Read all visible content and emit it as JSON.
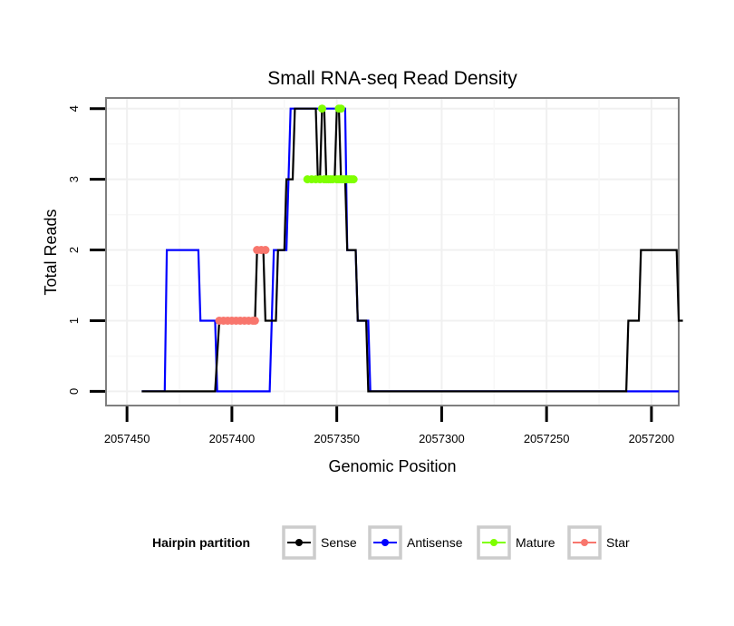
{
  "chart_data": {
    "type": "line",
    "title": "Small RNA-seq Read Density",
    "xlabel": "Genomic Position",
    "ylabel": "Total Reads",
    "x_reversed": true,
    "xlim": [
      2057460,
      2057187
    ],
    "ylim": [
      -0.2,
      4.15
    ],
    "x_ticks": [
      2057450,
      2057400,
      2057350,
      2057300,
      2057250,
      2057200
    ],
    "x_tick_labels": [
      "2057450",
      "2057400",
      "2057350",
      "2057300",
      "2057250",
      "2057200"
    ],
    "y_ticks": [
      0,
      1,
      2,
      3,
      4
    ],
    "y_tick_labels": [
      "0",
      "1",
      "2",
      "3",
      "4"
    ],
    "grid": true,
    "legend": {
      "title": "Hairpin partition",
      "position": "bottom",
      "entries": [
        "Sense",
        "Antisense",
        "Mature",
        "Star"
      ]
    },
    "series": [
      {
        "name": "Sense",
        "color": "#000000",
        "style": "line",
        "x": [
          2057443,
          2057408,
          2057406,
          2057389,
          2057388,
          2057385,
          2057384,
          2057379,
          2057378,
          2057375,
          2057374,
          2057371,
          2057370,
          2057360,
          2057359,
          2057358,
          2057357,
          2057356,
          2057355,
          2057351,
          2057350,
          2057349,
          2057348,
          2057346,
          2057345,
          2057341,
          2057340,
          2057336,
          2057335,
          2057331,
          2057330,
          2057212,
          2057211,
          2057206,
          2057205,
          2057188,
          2057187,
          2057185
        ],
        "y": [
          0,
          0,
          1,
          1,
          2,
          2,
          1,
          1,
          2,
          2,
          3,
          3,
          4,
          4,
          3,
          3,
          4,
          4,
          3,
          3,
          4,
          4,
          3,
          3,
          2,
          2,
          1,
          1,
          0,
          0,
          0,
          0,
          1,
          1,
          2,
          2,
          1,
          1
        ]
      },
      {
        "name": "Antisense",
        "color": "#0000ff",
        "style": "line",
        "x": [
          2057443,
          2057432,
          2057431,
          2057416,
          2057415,
          2057408,
          2057407,
          2057400,
          2057399,
          2057382,
          2057380,
          2057374,
          2057372,
          2057346,
          2057345,
          2057341,
          2057340,
          2057335,
          2057334,
          2057187
        ],
        "y": [
          0,
          0,
          2,
          2,
          1,
          1,
          0,
          0,
          0,
          0,
          2,
          2,
          4,
          4,
          2,
          2,
          1,
          1,
          0,
          0
        ]
      },
      {
        "name": "Mature",
        "color": "#7fff00",
        "style": "points",
        "x": [
          2057364,
          2057362,
          2057360,
          2057358,
          2057357,
          2057356,
          2057355,
          2057354,
          2057353,
          2057352,
          2057350,
          2057349,
          2057348,
          2057347,
          2057346,
          2057345,
          2057344,
          2057343,
          2057342,
          2057349,
          2057348
        ],
        "y": [
          3,
          3,
          3,
          3,
          4,
          3,
          3,
          3,
          3,
          3,
          3,
          4,
          4,
          3,
          3,
          3,
          3,
          3,
          3,
          3,
          3
        ]
      },
      {
        "name": "Star",
        "color": "#f8766d",
        "style": "points",
        "x": [
          2057406,
          2057404,
          2057402,
          2057400,
          2057398,
          2057396,
          2057394,
          2057392,
          2057390,
          2057389,
          2057388,
          2057386,
          2057384
        ],
        "y": [
          1,
          1,
          1,
          1,
          1,
          1,
          1,
          1,
          1,
          1,
          2,
          2,
          2
        ]
      }
    ]
  }
}
